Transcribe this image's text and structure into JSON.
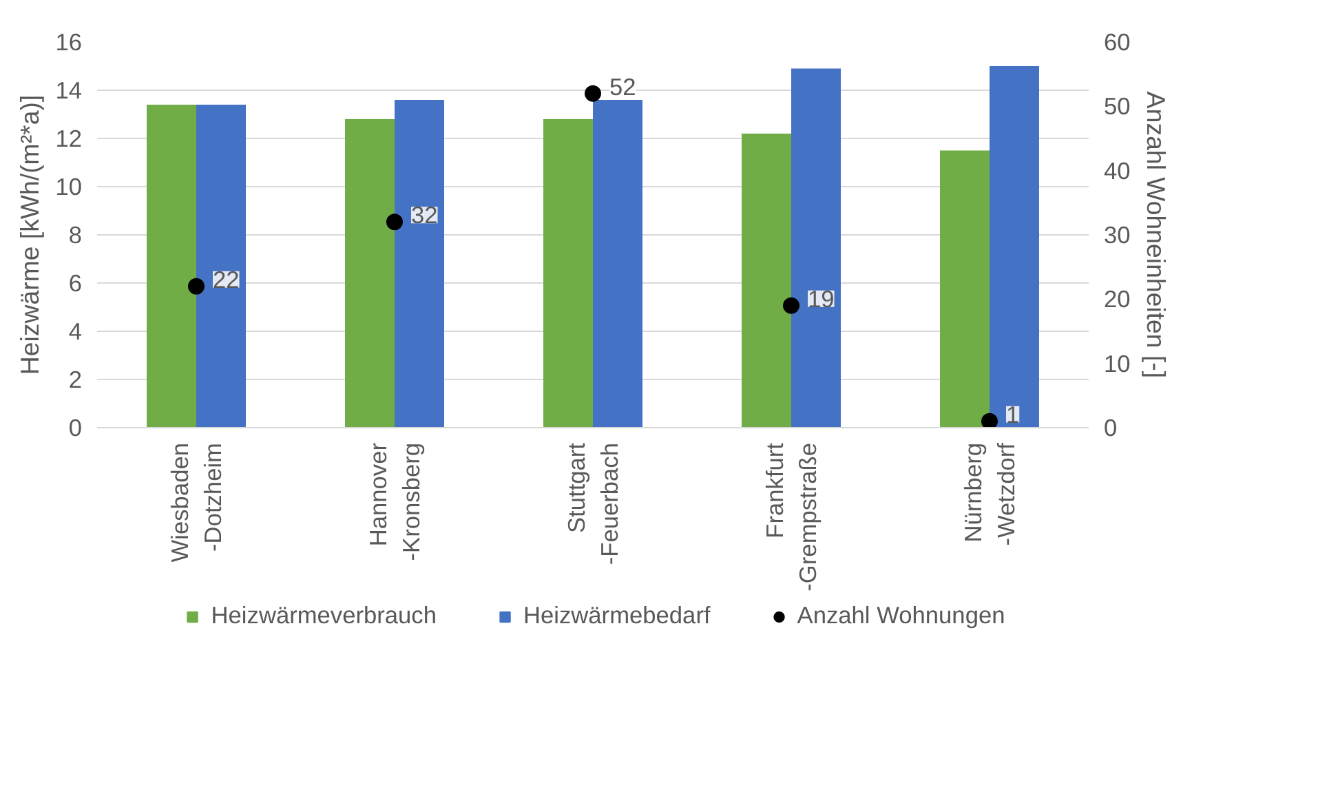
{
  "chart_data": {
    "type": "bar",
    "categories": [
      "Wiesbaden\n-Dotzheim",
      "Hannover\n-Kronsberg",
      "Stuttgart\n-Feuerbach",
      "Frankfurt\n-Grempstraße",
      "Nürnberg\n-Wetzdorf"
    ],
    "ylabel": "Heizwärme [kWh/(m²*a)]",
    "y2label": "Anzahl Wohneinheiten [-]",
    "ylim": [
      0,
      16
    ],
    "yticks": [
      0,
      2,
      4,
      6,
      8,
      10,
      12,
      14,
      16
    ],
    "y2lim": [
      0,
      60
    ],
    "y2ticks": [
      0,
      10,
      20,
      30,
      40,
      50,
      60
    ],
    "grid": "y",
    "legend": "bottom",
    "series": [
      {
        "name": "Heizwärmeverbrauch",
        "color": "#70ad47",
        "values": [
          13.4,
          12.8,
          12.8,
          12.2,
          11.5
        ]
      },
      {
        "name": "Heizwärmebedarf",
        "color": "#4472c4",
        "values": [
          13.4,
          13.6,
          13.6,
          14.9,
          15.0
        ]
      },
      {
        "name": "Anzahl Wohnungen",
        "type": "scatter",
        "axis": "y2",
        "color": "#000000",
        "marker": "circle",
        "values": [
          22,
          32,
          52,
          19,
          1
        ],
        "data_labels": true
      }
    ]
  }
}
